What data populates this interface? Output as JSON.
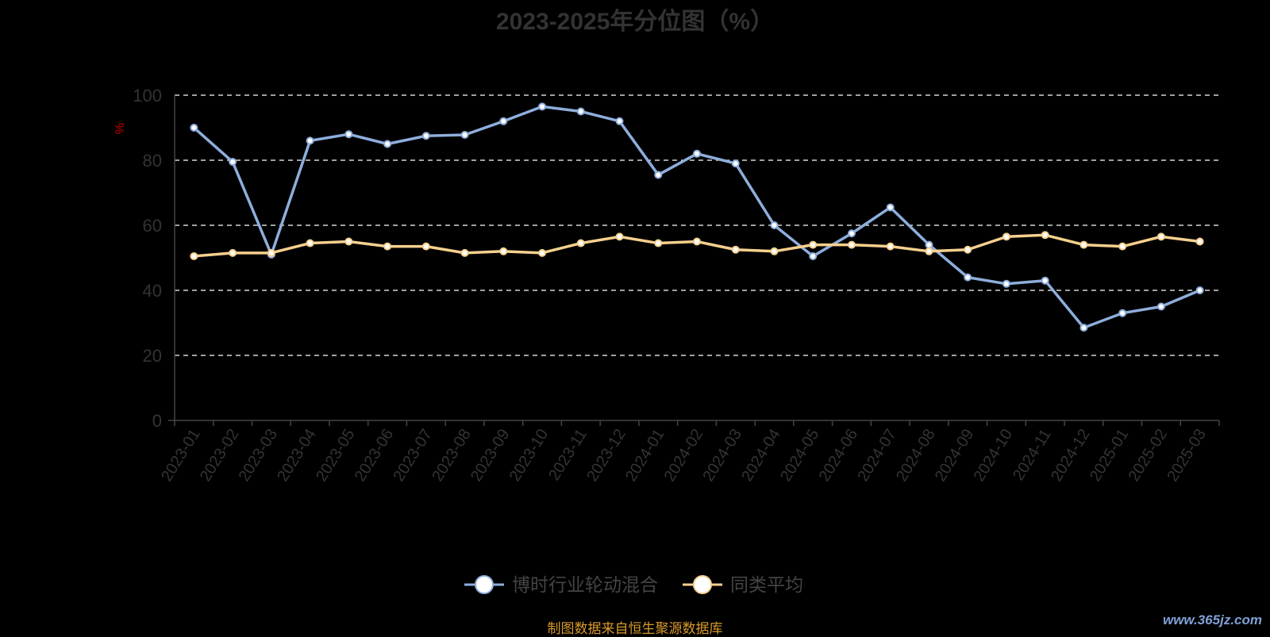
{
  "title": "2023-2025年分位图（%）",
  "source_note": "制图数据来自恒生聚源数据库",
  "watermark": "www.365jz.com",
  "chart_data": {
    "type": "line",
    "title": "2023-2025年分位图（%）",
    "ylabel": "%",
    "xlabel": "",
    "ylim": [
      0,
      100
    ],
    "yticks": [
      0,
      20,
      40,
      60,
      80,
      100
    ],
    "grid": true,
    "legend_position": "bottom",
    "categories": [
      "2023-01",
      "2023-02",
      "2023-03",
      "2023-04",
      "2023-05",
      "2023-06",
      "2023-07",
      "2023-08",
      "2023-09",
      "2023-10",
      "2023-11",
      "2023-12",
      "2024-01",
      "2024-02",
      "2024-03",
      "2024-04",
      "2024-05",
      "2024-06",
      "2024-07",
      "2024-08",
      "2024-09",
      "2024-10",
      "2024-11",
      "2024-12",
      "2025-01",
      "2025-02",
      "2025-03"
    ],
    "series": [
      {
        "name": "博时行业轮动混合",
        "color": "#8eaedc",
        "values": [
          90,
          79.5,
          51,
          86,
          88,
          85,
          87.5,
          87.8,
          92,
          96.5,
          95,
          92,
          75.5,
          82,
          79,
          60,
          50.5,
          57.5,
          65.5,
          54,
          44,
          42,
          43,
          28.5,
          33,
          35,
          40
        ]
      },
      {
        "name": "同类平均",
        "color": "#f5d08e",
        "values": [
          50.5,
          51.5,
          51.5,
          54.5,
          55,
          53.5,
          53.5,
          51.5,
          52,
          51.5,
          54.5,
          56.5,
          54.5,
          55,
          52.5,
          52,
          54,
          54,
          53.5,
          52,
          52.5,
          56.5,
          57,
          54,
          53.5,
          56.5,
          55
        ]
      }
    ]
  }
}
